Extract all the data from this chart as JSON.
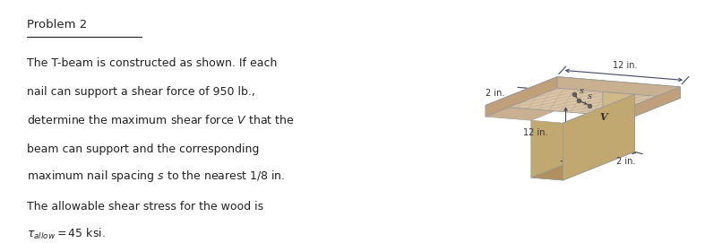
{
  "title": "Problem 2",
  "body_lines": [
    "The T-beam is constructed as shown. If each",
    "nail can support a shear force of 950 lb.,",
    "determine the maximum shear force $V$ that the",
    "beam can support and the corresponding",
    "maximum nail spacing $s$ to the nearest 1/8 in.",
    "The allowable shear stress for the wood is",
    "$\\tau_{allow}= 45$ ksi."
  ],
  "background_color": "#ffffff",
  "text_color": "#222222",
  "title_fontsize": 9.5,
  "body_fontsize": 9.0,
  "dim_2in_top": "2 in.",
  "dim_12in_width": "12 in.",
  "dim_12in_height": "12 in.",
  "dim_2in_bottom": "2 in.",
  "dim_s": "s",
  "dim_V": "V",
  "flange_top_color": "#d8c4a8",
  "flange_front_color": "#c8b090",
  "flange_right_color": "#bfa07a",
  "web_front_color": "#d0b888",
  "web_right_color": "#c0a870",
  "web_bottom_color": "#b09060",
  "hatch_color": "#c4aa88",
  "nail_color": "#666666",
  "dim_color": "#444466",
  "line_color": "#555555"
}
